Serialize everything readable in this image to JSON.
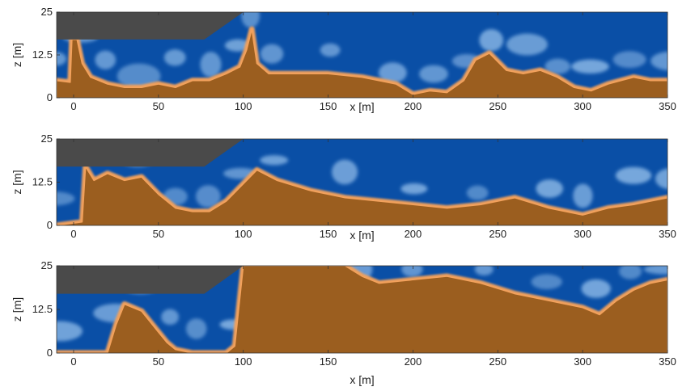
{
  "chart_data": {
    "type": "heatmap",
    "panel_count": 3,
    "xlabel": "x [m]",
    "ylabel": "z [m]",
    "xlim": [
      -10,
      350
    ],
    "ylim": [
      0,
      25
    ],
    "xticks": [
      0,
      50,
      100,
      150,
      200,
      250,
      300,
      350
    ],
    "yticks": [
      0,
      12.5,
      25
    ],
    "colors": {
      "fluid_a": "#0a4fa6",
      "fluid_b": "#9b5e1f",
      "interface_light": "#8ab7e6",
      "interface_warm": "#f2a15c",
      "structure": "#4a4a4a"
    },
    "structure_outline": [
      [
        -10,
        25
      ],
      [
        100,
        25
      ],
      [
        77,
        17
      ],
      [
        -10,
        17
      ]
    ],
    "panels": [
      {
        "front_profile": [
          [
            -10,
            5
          ],
          [
            -2,
            4.5
          ],
          [
            -1,
            17
          ],
          [
            2,
            17
          ],
          [
            5,
            10
          ],
          [
            10,
            6
          ],
          [
            20,
            4
          ],
          [
            30,
            3
          ],
          [
            40,
            3
          ],
          [
            50,
            4
          ],
          [
            60,
            3
          ],
          [
            70,
            5
          ],
          [
            80,
            5
          ],
          [
            90,
            7
          ],
          [
            98,
            9
          ],
          [
            102,
            14
          ],
          [
            105,
            20
          ],
          [
            108,
            10
          ],
          [
            115,
            7
          ],
          [
            130,
            7
          ],
          [
            150,
            7
          ],
          [
            170,
            6
          ],
          [
            190,
            4
          ],
          [
            200,
            1
          ],
          [
            210,
            2
          ],
          [
            220,
            1.5
          ],
          [
            230,
            5
          ],
          [
            237,
            11
          ],
          [
            245,
            13
          ],
          [
            255,
            8
          ],
          [
            265,
            7
          ],
          [
            275,
            8
          ],
          [
            285,
            6
          ],
          [
            295,
            3
          ],
          [
            305,
            2
          ],
          [
            315,
            4
          ],
          [
            330,
            6
          ],
          [
            340,
            5
          ],
          [
            350,
            5
          ]
        ]
      },
      {
        "front_profile": [
          [
            -10,
            0
          ],
          [
            5,
            1
          ],
          [
            7,
            17
          ],
          [
            12,
            13
          ],
          [
            20,
            15
          ],
          [
            30,
            13
          ],
          [
            40,
            14
          ],
          [
            50,
            9
          ],
          [
            60,
            5
          ],
          [
            70,
            4
          ],
          [
            80,
            4
          ],
          [
            90,
            7
          ],
          [
            100,
            12
          ],
          [
            108,
            16
          ],
          [
            120,
            13
          ],
          [
            140,
            10
          ],
          [
            160,
            8
          ],
          [
            180,
            7
          ],
          [
            200,
            6
          ],
          [
            220,
            5
          ],
          [
            240,
            6
          ],
          [
            260,
            8
          ],
          [
            280,
            5
          ],
          [
            290,
            4
          ],
          [
            300,
            3
          ],
          [
            315,
            5
          ],
          [
            330,
            6
          ],
          [
            340,
            7
          ],
          [
            350,
            8
          ]
        ]
      },
      {
        "front_profile": [
          [
            -10,
            0
          ],
          [
            20,
            0
          ],
          [
            25,
            8
          ],
          [
            30,
            14
          ],
          [
            40,
            12
          ],
          [
            50,
            6
          ],
          [
            55,
            3
          ],
          [
            60,
            1
          ],
          [
            70,
            0
          ],
          [
            90,
            0
          ],
          [
            95,
            2
          ],
          [
            100,
            25
          ],
          [
            150,
            25
          ],
          [
            160,
            25
          ],
          [
            170,
            22
          ],
          [
            180,
            20
          ],
          [
            200,
            21
          ],
          [
            220,
            22
          ],
          [
            240,
            20
          ],
          [
            260,
            17
          ],
          [
            280,
            15
          ],
          [
            300,
            13
          ],
          [
            310,
            11
          ],
          [
            320,
            15
          ],
          [
            330,
            18
          ],
          [
            340,
            20
          ],
          [
            350,
            21
          ]
        ]
      }
    ]
  }
}
